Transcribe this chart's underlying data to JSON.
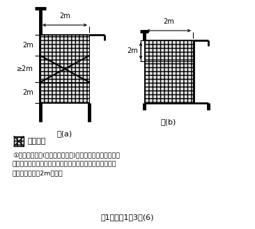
{
  "title": "第1條　圖1－3－(6)",
  "fig_a_label": "圖(a)",
  "fig_b_label": "圖(b)",
  "legend_label": "不做陽台",
  "note_line1": "①同一住宅單位(或其他使用單位)，在其外牆之陰角處設置",
  "note_line2": "　連續之陽台時，以沿接外牆設置為原則，且對側之陽台外",
  "note_line3": "　緣至少應相距2m以上。",
  "background": "#ffffff"
}
